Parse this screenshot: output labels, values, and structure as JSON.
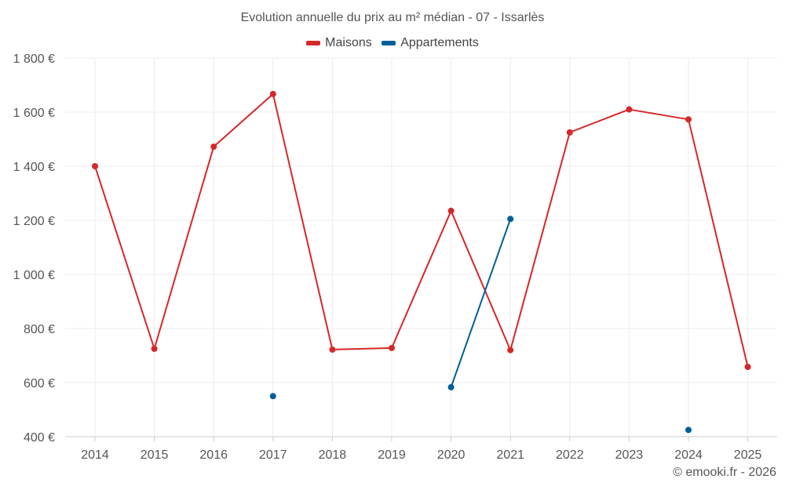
{
  "chart_data": {
    "type": "line",
    "title": "Evolution annuelle du prix au m² médian - 07 - Issarlès",
    "categories": [
      "2014",
      "2015",
      "2016",
      "2017",
      "2018",
      "2019",
      "2020",
      "2021",
      "2022",
      "2023",
      "2024",
      "2025"
    ],
    "series": [
      {
        "name": "Maisons",
        "color": "#d62728",
        "values": [
          1400,
          725,
          1472,
          1667,
          722,
          728,
          1235,
          720,
          1525,
          1610,
          1573,
          658
        ]
      },
      {
        "name": "Appartements",
        "color": "#005f99",
        "values": [
          null,
          null,
          null,
          550,
          null,
          null,
          583,
          1205,
          null,
          null,
          425,
          null
        ]
      }
    ],
    "ylim": [
      400,
      1800
    ],
    "yticks": [
      400,
      600,
      800,
      1000,
      1200,
      1400,
      1600,
      1800
    ],
    "ytick_labels": [
      "400 €",
      "600 €",
      "800 €",
      "1 000 €",
      "1 200 €",
      "1 400 €",
      "1 600 €",
      "1 800 €"
    ],
    "xlabel": "",
    "ylabel": "",
    "grid": true,
    "legend_position": "top-center"
  },
  "credit": "© emooki.fr - 2026"
}
